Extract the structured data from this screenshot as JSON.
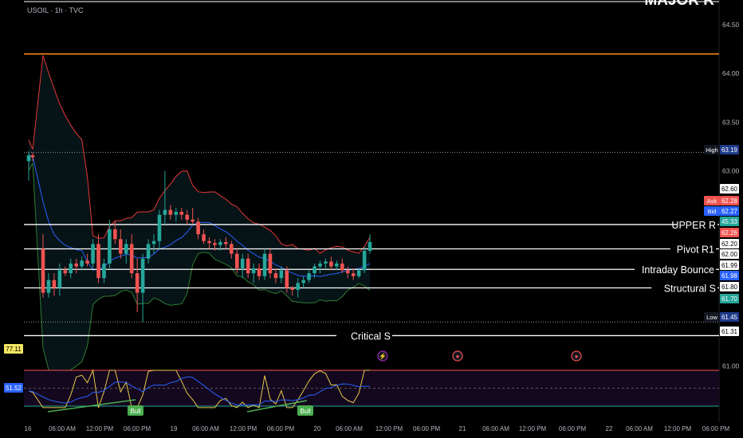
{
  "symbol": "USOIL · 1h · TVC",
  "major_label": "MAJOR R",
  "colors": {
    "up": "#26a69a",
    "down": "#ef5350",
    "bb_upper": "#e53935",
    "bb_basis": "#2962ff",
    "bb_lower": "#2e7d32",
    "orange_line": "#ff8a1e",
    "rsi": "#e6c84a",
    "rsi_ma": "#2962ff"
  },
  "levels": {
    "major_r": 64.2,
    "upper_r": 62.45,
    "pivot_r1": 62.2,
    "intraday_bounce": 61.99,
    "structural_s": 61.8,
    "critical_s": 61.31,
    "high": 63.19,
    "low": 61.45
  },
  "level_labels": {
    "upper_r": "UPPER R",
    "pivot_r1": "Pivot R1",
    "intraday_bounce": "Intraday Bounce",
    "structural_s": "Structural S",
    "critical_s": "Critical S"
  },
  "price_badges": [
    {
      "text": "High",
      "value": "63.19"
    },
    {
      "text": "Ask",
      "value": "62.28"
    },
    {
      "text": "Bid",
      "value": "62.27"
    },
    {
      "text": "Low",
      "value": "61.45"
    }
  ],
  "price_tags": [
    "62.60",
    "62.28",
    "62.27",
    "45:33",
    "62.26",
    "62.20",
    "62.00",
    "61.99",
    "61.98",
    "61.80",
    "61.70",
    "61.31"
  ],
  "rsi_tags": [
    "77.11",
    "51.52"
  ],
  "bull_label": "Bull",
  "chart_data": {
    "type": "candlestick",
    "y_ticks": [
      "64.50",
      "64.00",
      "63.50",
      "63.00",
      "61.00"
    ],
    "y_range": [
      61.0,
      64.5
    ],
    "x_ticks": [
      "16",
      "06:00 AM",
      "12:00 PM",
      "06:00 PM",
      "19",
      "06:00 AM",
      "12:00 PM",
      "06:00 PM",
      "20",
      "06:00 AM",
      "12:00 PM",
      "06:00 PM",
      "21",
      "06:00 AM",
      "12:00 PM",
      "06:00 PM",
      "22",
      "06:00 AM",
      "12:00 PM",
      "06:00 PM"
    ],
    "candles": [
      {
        "o": 63.1,
        "h": 63.2,
        "l": 62.9,
        "c": 63.16
      },
      {
        "o": 63.16,
        "h": 63.19,
        "l": 63.1,
        "c": 63.14
      },
      {
        "o": 62.2,
        "h": 62.35,
        "l": 61.7,
        "c": 61.75
      },
      {
        "o": 61.75,
        "h": 61.95,
        "l": 61.7,
        "c": 61.88
      },
      {
        "o": 61.88,
        "h": 61.95,
        "l": 61.72,
        "c": 61.8
      },
      {
        "o": 61.8,
        "h": 62.05,
        "l": 61.72,
        "c": 61.98
      },
      {
        "o": 61.98,
        "h": 62.02,
        "l": 61.92,
        "c": 61.95
      },
      {
        "o": 61.95,
        "h": 62.1,
        "l": 61.9,
        "c": 62.05
      },
      {
        "o": 62.05,
        "h": 62.1,
        "l": 61.95,
        "c": 62.02
      },
      {
        "o": 62.02,
        "h": 62.12,
        "l": 61.98,
        "c": 62.08
      },
      {
        "o": 62.08,
        "h": 62.15,
        "l": 62.02,
        "c": 62.05
      },
      {
        "o": 62.05,
        "h": 62.3,
        "l": 62.0,
        "c": 62.25
      },
      {
        "o": 62.25,
        "h": 62.35,
        "l": 61.85,
        "c": 61.9
      },
      {
        "o": 61.9,
        "h": 62.1,
        "l": 61.85,
        "c": 62.05
      },
      {
        "o": 62.05,
        "h": 62.5,
        "l": 62.0,
        "c": 62.4
      },
      {
        "o": 62.4,
        "h": 62.48,
        "l": 62.25,
        "c": 62.3
      },
      {
        "o": 62.3,
        "h": 62.4,
        "l": 62.1,
        "c": 62.15
      },
      {
        "o": 62.15,
        "h": 62.3,
        "l": 62.05,
        "c": 62.25
      },
      {
        "o": 62.25,
        "h": 62.35,
        "l": 61.9,
        "c": 61.95
      },
      {
        "o": 61.95,
        "h": 62.1,
        "l": 61.55,
        "c": 61.75
      },
      {
        "o": 61.75,
        "h": 62.15,
        "l": 61.45,
        "c": 62.1
      },
      {
        "o": 62.1,
        "h": 62.3,
        "l": 62.05,
        "c": 62.25
      },
      {
        "o": 62.25,
        "h": 62.35,
        "l": 62.15,
        "c": 62.28
      },
      {
        "o": 62.28,
        "h": 62.6,
        "l": 62.2,
        "c": 62.55
      },
      {
        "o": 62.55,
        "h": 63.0,
        "l": 62.45,
        "c": 62.6
      },
      {
        "o": 62.6,
        "h": 62.65,
        "l": 62.5,
        "c": 62.55
      },
      {
        "o": 62.55,
        "h": 62.62,
        "l": 62.48,
        "c": 62.58
      },
      {
        "o": 62.58,
        "h": 62.62,
        "l": 62.5,
        "c": 62.55
      },
      {
        "o": 62.55,
        "h": 62.6,
        "l": 62.45,
        "c": 62.5
      },
      {
        "o": 62.5,
        "h": 62.62,
        "l": 62.45,
        "c": 62.48
      },
      {
        "o": 62.48,
        "h": 62.52,
        "l": 62.3,
        "c": 62.35
      },
      {
        "o": 62.35,
        "h": 62.4,
        "l": 62.25,
        "c": 62.28
      },
      {
        "o": 62.28,
        "h": 62.32,
        "l": 62.2,
        "c": 62.26
      },
      {
        "o": 62.26,
        "h": 62.3,
        "l": 62.18,
        "c": 62.24
      },
      {
        "o": 62.24,
        "h": 62.3,
        "l": 62.18,
        "c": 62.27
      },
      {
        "o": 62.27,
        "h": 62.32,
        "l": 62.2,
        "c": 62.25
      },
      {
        "o": 62.25,
        "h": 62.28,
        "l": 62.1,
        "c": 62.15
      },
      {
        "o": 62.15,
        "h": 62.2,
        "l": 61.95,
        "c": 62.0
      },
      {
        "o": 62.0,
        "h": 62.15,
        "l": 61.9,
        "c": 62.1
      },
      {
        "o": 62.1,
        "h": 62.15,
        "l": 61.9,
        "c": 61.95
      },
      {
        "o": 61.95,
        "h": 62.05,
        "l": 61.85,
        "c": 62.0
      },
      {
        "o": 62.0,
        "h": 62.05,
        "l": 61.88,
        "c": 61.92
      },
      {
        "o": 61.92,
        "h": 62.2,
        "l": 61.88,
        "c": 62.15
      },
      {
        "o": 62.15,
        "h": 62.2,
        "l": 61.9,
        "c": 61.95
      },
      {
        "o": 61.95,
        "h": 62.0,
        "l": 61.85,
        "c": 61.9
      },
      {
        "o": 61.9,
        "h": 62.02,
        "l": 61.85,
        "c": 61.98
      },
      {
        "o": 61.98,
        "h": 62.02,
        "l": 61.75,
        "c": 61.8
      },
      {
        "o": 61.8,
        "h": 61.82,
        "l": 61.72,
        "c": 61.78
      },
      {
        "o": 61.78,
        "h": 61.9,
        "l": 61.7,
        "c": 61.85
      },
      {
        "o": 61.85,
        "h": 61.92,
        "l": 61.8,
        "c": 61.88
      },
      {
        "o": 61.88,
        "h": 61.98,
        "l": 61.85,
        "c": 61.95
      },
      {
        "o": 61.95,
        "h": 62.05,
        "l": 61.9,
        "c": 62.02
      },
      {
        "o": 62.02,
        "h": 62.08,
        "l": 61.95,
        "c": 62.05
      },
      {
        "o": 62.05,
        "h": 62.1,
        "l": 62.0,
        "c": 62.07
      },
      {
        "o": 62.07,
        "h": 62.12,
        "l": 61.98,
        "c": 62.02
      },
      {
        "o": 62.02,
        "h": 62.08,
        "l": 61.98,
        "c": 62.05
      },
      {
        "o": 62.05,
        "h": 62.1,
        "l": 61.95,
        "c": 61.98
      },
      {
        "o": 61.98,
        "h": 62.02,
        "l": 61.9,
        "c": 61.95
      },
      {
        "o": 61.95,
        "h": 62.0,
        "l": 61.88,
        "c": 61.92
      },
      {
        "o": 61.92,
        "h": 62.0,
        "l": 61.9,
        "c": 61.98
      },
      {
        "o": 61.98,
        "h": 62.22,
        "l": 61.95,
        "c": 62.18
      },
      {
        "o": 62.18,
        "h": 62.35,
        "l": 62.15,
        "c": 62.27
      }
    ]
  }
}
